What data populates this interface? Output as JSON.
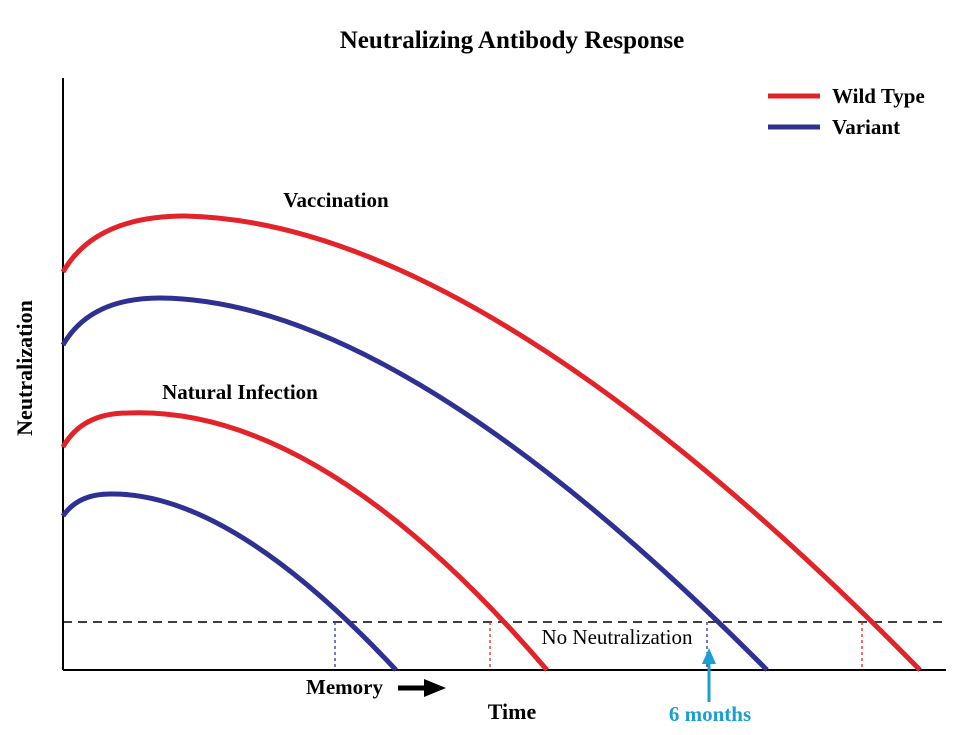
{
  "title": "Neutralizing Antibody Response",
  "ylabel": "Neutralization",
  "xlabel": "Time",
  "legend": [
    {
      "label": "Wild Type",
      "color": "#e3232a"
    },
    {
      "label": "Variant",
      "color": "#2e3192"
    }
  ],
  "annotations": {
    "vaccination": "Vaccination",
    "natural_infection": "Natural Infection",
    "threshold": "No Neutralization",
    "memory": "Memory",
    "six_months": "6 months"
  },
  "colors": {
    "wild_type": "#e3232a",
    "variant": "#2e3192",
    "highlight": "#1a9fd0"
  }
}
